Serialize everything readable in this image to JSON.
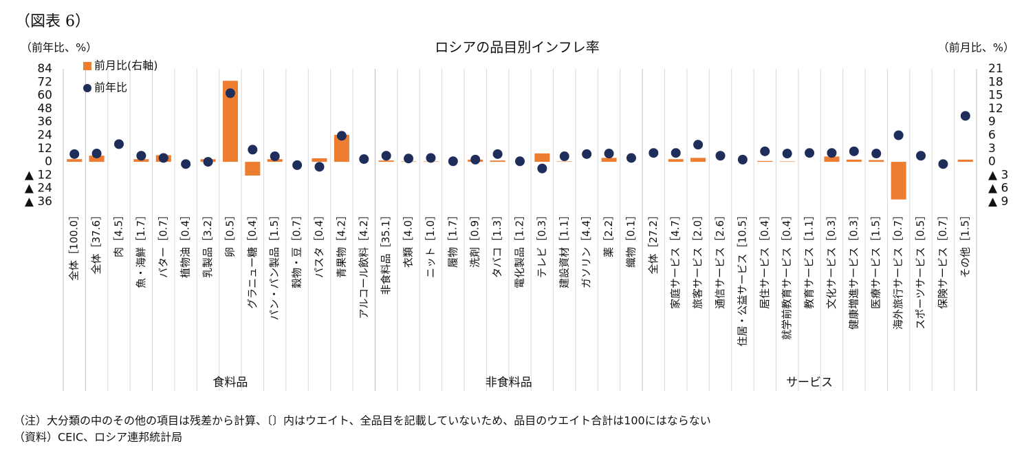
{
  "chart_data": {
    "type": "combo",
    "figure_label": "（図表 6）",
    "title": "ロシアの品目別インフレ率",
    "y_label": "（前年比、%）",
    "y2_label": "（前月比、%）",
    "categories": [
      "全体［100.0］",
      "全体［37.6］",
      "肉［4.5］",
      "魚・海鮮［1.7］",
      "バター［0.7］",
      "植物油［0.4］",
      "乳製品［3.2］",
      "卵［0.5］",
      "グラニュー糖［0.4］",
      "パン・パン製品［1.5］",
      "穀物・豆［0.7］",
      "パスタ［0.4］",
      "青果物［4.2］",
      "アルコール飲料［4.2］",
      "非食料品［35.1］",
      "衣類［4.0］",
      "ニット［1.0］",
      "履物［1.7］",
      "洗剤［0.9］",
      "タバコ［1.3］",
      "電化製品［1.2］",
      "テレビ［0.3］",
      "建設資材［1.1］",
      "ガソリン［4.4］",
      "薬［2.2］",
      "織物［0.1］",
      "全体［27.2］",
      "家庭サービス［4.7］",
      "旅客サービス［2.0］",
      "通信サービス［2.6］",
      "住居・公益サービス［10.5］",
      "居住サービス［0.4］",
      "就学前教育サービス［0.4］",
      "教育サービス［1.1］",
      "文化サービス［0.3］",
      "健康増進サービス［0.3］",
      "医療サービス［1.5］",
      "海外旅行サービス［0.7］",
      "スポーツサービス［0.5］",
      "保険サービス［0.7］",
      "その他［1.5］"
    ],
    "groups": [
      {
        "label": "食料品",
        "start": 1,
        "end": 13
      },
      {
        "label": "非食料品",
        "start": 14,
        "end": 25
      },
      {
        "label": "サービス",
        "start": 26,
        "end": 40
      }
    ],
    "series": [
      {
        "name": "前月比(右軸)",
        "type": "bar",
        "axis": "y2",
        "color": "#ed7d31",
        "values": [
          0.6,
          1.4,
          0,
          0.6,
          1.5,
          0,
          0.6,
          18.3,
          -3.1,
          0.6,
          0,
          0.8,
          6.1,
          0,
          0.3,
          0.1,
          0.1,
          0,
          0.5,
          0.3,
          0,
          1.9,
          0.1,
          0,
          0.9,
          0,
          0,
          0.6,
          0.9,
          0,
          0,
          0.2,
          0.1,
          0,
          1.2,
          0.5,
          0.4,
          -8.5,
          0,
          0,
          0.5
        ]
      },
      {
        "name": "前年比",
        "type": "scatter",
        "color": "#1f2d5a",
        "values": [
          7,
          7.5,
          16,
          5.5,
          3.5,
          -2,
          0,
          62,
          11,
          5,
          -3,
          -4.5,
          23.5,
          2.5,
          5.5,
          3,
          3.5,
          0.5,
          2,
          7,
          0.5,
          -6,
          5,
          7,
          7.5,
          3.5,
          8,
          8,
          15.5,
          5.5,
          2,
          9.5,
          7.5,
          8,
          8,
          9.5,
          7.5,
          24,
          5.5,
          -2,
          41.5
        ]
      }
    ],
    "ylim": [
      -36,
      84
    ],
    "yticks": [
      84,
      72,
      60,
      48,
      36,
      24,
      12,
      0,
      {
        "value": -12,
        "label": "▲ 12"
      },
      {
        "value": -24,
        "label": "▲ 24"
      },
      {
        "value": -36,
        "label": "▲ 36"
      }
    ],
    "y2lim": [
      -9,
      21
    ],
    "y2ticks": [
      21,
      18,
      15,
      12,
      9,
      6,
      3,
      0,
      {
        "value": -3,
        "label": "▲ 3"
      },
      {
        "value": -6,
        "label": "▲ 6"
      },
      {
        "value": -9,
        "label": "▲ 9"
      }
    ],
    "notes": [
      "（注）大分類の中のその他の項目は残差から計算、〔〕内はウエイト、全品目を記載していないため、品目のウエイト合計は100にはならない",
      "（資料）CEIC、ロシア連邦統計局"
    ]
  }
}
